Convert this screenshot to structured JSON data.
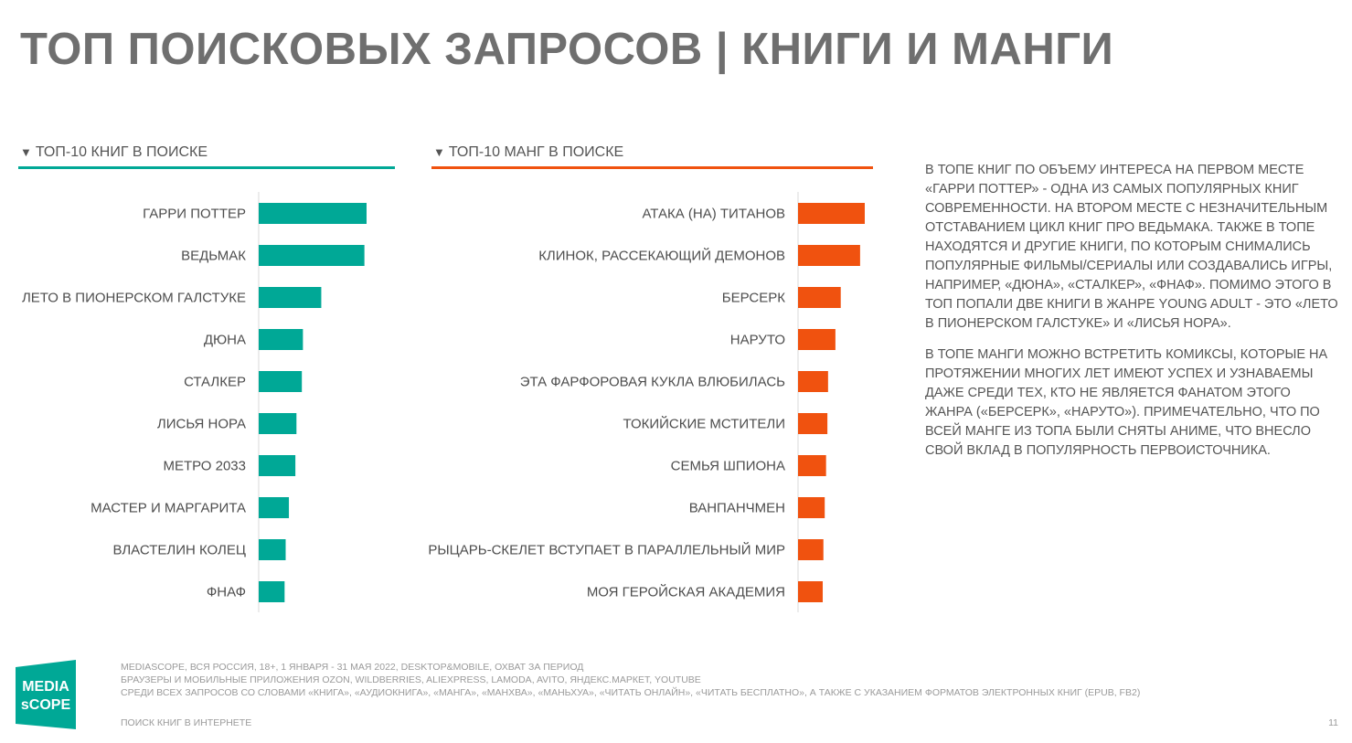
{
  "title": "ТОП ПОИСКОВЫХ ЗАПРОСОВ | КНИГИ И МАНГИ",
  "colors": {
    "books": "#00A896",
    "manga": "#F0520F"
  },
  "books_section": {
    "marker": "▼",
    "label": "ТОП-10 КНИГ В ПОИСКЕ"
  },
  "manga_section": {
    "marker": "▼",
    "label": "ТОП-10 МАНГ В ПОИСКЕ"
  },
  "chart_data": [
    {
      "type": "bar",
      "orientation": "horizontal",
      "title": "ТОП-10 КНИГ В ПОИСКЕ",
      "categories": [
        "ГАРРИ ПОТТЕР",
        "ВЕДЬМАК",
        "ЛЕТО В ПИОНЕРСКОМ ГАЛСТУКЕ",
        "ДЮНА",
        "СТАЛКЕР",
        "ЛИСЬЯ НОРА",
        "МЕТРО 2033",
        "МАСТЕР И МАРГАРИТА",
        "ВЛАСТЕЛИН КОЛЕЦ",
        "ФНАФ"
      ],
      "values": [
        100,
        98,
        58,
        41,
        40,
        35,
        34,
        28,
        25,
        24
      ],
      "color": "#00A896",
      "xlim": [
        0,
        100
      ]
    },
    {
      "type": "bar",
      "orientation": "horizontal",
      "title": "ТОП-10 МАНГ В ПОИСКЕ",
      "categories": [
        "АТАКА (НА) ТИТАНОВ",
        "КЛИНОК, РАССЕКАЮЩИЙ ДЕМОНОВ",
        "БЕРСЕРК",
        "НАРУТО",
        "ЭТА ФАРФОРОВАЯ КУКЛА ВЛЮБИЛАСЬ",
        "ТОКИЙСКИЕ МСТИТЕЛИ",
        "СЕМЬЯ ШПИОНА",
        "ВАНПАНЧМЕН",
        "РЫЦАРЬ-СКЕЛЕТ ВСТУПАЕТ В ПАРАЛЛЕЛЬНЫЙ МИР",
        "МОЯ ГЕРОЙСКАЯ АКАДЕМИЯ"
      ],
      "values": [
        100,
        93,
        64,
        56,
        45,
        44,
        42,
        40,
        38,
        37
      ],
      "color": "#F0520F",
      "xlim": [
        0,
        100
      ]
    }
  ],
  "description": {
    "p1": "В ТОПЕ КНИГ ПО ОБЪЕМУ ИНТЕРЕСА НА ПЕРВОМ МЕСТЕ «ГАРРИ ПОТТЕР» - ОДНА ИЗ САМЫХ ПОПУЛЯРНЫХ КНИГ СОВРЕМЕННОСТИ. НА ВТОРОМ МЕСТЕ С НЕЗНАЧИТЕЛЬНЫМ ОТСТАВАНИЕМ ЦИКЛ КНИГ ПРО ВЕДЬМАКА. ТАКЖЕ В ТОПЕ НАХОДЯТСЯ И ДРУГИЕ КНИГИ, ПО КОТОРЫМ СНИМАЛИСЬ ПОПУЛЯРНЫЕ ФИЛЬМЫ/СЕРИАЛЫ ИЛИ СОЗДАВАЛИСЬ ИГРЫ, НАПРИМЕР, «ДЮНА», «СТАЛКЕР», «ФНАФ». ПОМИМО ЭТОГО В ТОП ПОПАЛИ ДВЕ КНИГИ В ЖАНРЕ YOUNG ADULT - ЭТО «ЛЕТО В ПИОНЕРСКОМ ГАЛСТУКЕ» И «ЛИСЬЯ НОРА».",
    "p2": "В ТОПЕ МАНГИ МОЖНО ВСТРЕТИТЬ КОМИКСЫ, КОТОРЫЕ НА ПРОТЯЖЕНИИ МНОГИХ ЛЕТ ИМЕЮТ УСПЕХ И УЗНАВАЕМЫ ДАЖЕ СРЕДИ ТЕХ, КТО НЕ ЯВЛЯЕТСЯ ФАНАТОМ ЭТОГО ЖАНРА («БЕРСЕРК», «НАРУТО»). ПРИМЕЧАТЕЛЬНО, ЧТО ПО ВСЕЙ МАНГЕ ИЗ ТОПА БЫЛИ СНЯТЫ АНИМЕ, ЧТО ВНЕСЛО СВОЙ ВКЛАД В ПОПУЛЯРНОСТЬ ПЕРВОИСТОЧНИКА."
  },
  "logo": {
    "line1": "MEDIA",
    "line2": "sCOPE"
  },
  "notes": [
    "MEDIASCOPE, ВСЯ РОССИЯ, 18+, 1 ЯНВАРЯ - 31 МАЯ 2022, DESKTOP&MOBILE, ОХВАТ ЗА ПЕРИОД",
    "БРАУЗЕРЫ И МОБИЛЬНЫЕ ПРИЛОЖЕНИЯ OZON, WILDBERRIES, ALIEXPRESS, LAMODA, AVITO, ЯНДЕКС.МАРКЕТ, YOUTUBE",
    "СРЕДИ ВСЕХ ЗАПРОСОВ СО СЛОВАМИ «КНИГА», «АУДИОКНИГА», «МАНГА», «МАНХВА», «МАНЬХУА», «ЧИТАТЬ ОНЛАЙН», «ЧИТАТЬ БЕСПЛАТНО», А ТАКЖЕ С УКАЗАНИЕМ ФОРМАТОВ ЭЛЕКТРОННЫХ КНИГ (EPUB, FB2)"
  ],
  "footer": {
    "left": "ПОИСК КНИГ В ИНТЕРНЕТЕ",
    "page": "11"
  }
}
